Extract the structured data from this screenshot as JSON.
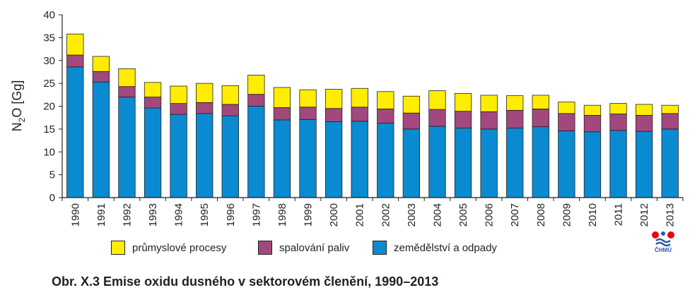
{
  "chart_data": {
    "type": "bar",
    "stacked": true,
    "ylabel_main": "N",
    "ylabel_sub": "2",
    "ylabel_rest": "O [Gg]",
    "ylim": [
      0,
      40
    ],
    "yticks": [
      0,
      5,
      10,
      15,
      20,
      25,
      30,
      35,
      40
    ],
    "grid": false,
    "legend_position": "bottom",
    "categories": [
      "1990",
      "1991",
      "1992",
      "1993",
      "1994",
      "1995",
      "1996",
      "1997",
      "1998",
      "1999",
      "2000",
      "2001",
      "2002",
      "2003",
      "2004",
      "2005",
      "2006",
      "2007",
      "2008",
      "2009",
      "2010",
      "2011",
      "2012",
      "2013"
    ],
    "series": [
      {
        "name": "zemědělství a odpady",
        "color": "#0a8bd1",
        "values": [
          28.6,
          25.3,
          22.0,
          19.6,
          18.2,
          18.4,
          17.9,
          20.0,
          17.0,
          17.1,
          16.6,
          16.7,
          16.3,
          15.0,
          15.6,
          15.2,
          15.0,
          15.2,
          15.5,
          14.6,
          14.4,
          14.7,
          14.5,
          15.0
        ]
      },
      {
        "name": "spalování paliv",
        "color": "#a3487d",
        "values": [
          2.6,
          2.3,
          2.3,
          2.4,
          2.4,
          2.4,
          2.5,
          2.6,
          2.7,
          2.7,
          2.9,
          3.1,
          3.1,
          3.5,
          3.7,
          3.7,
          3.8,
          3.9,
          3.9,
          3.8,
          3.6,
          3.6,
          3.5,
          3.4
        ]
      },
      {
        "name": "průmyslové procesy",
        "color": "#ffed00",
        "values": [
          4.6,
          3.3,
          3.9,
          3.2,
          3.8,
          4.2,
          4.1,
          4.2,
          4.4,
          3.8,
          4.2,
          4.1,
          3.8,
          3.7,
          4.1,
          3.9,
          3.6,
          3.2,
          3.0,
          2.5,
          2.2,
          2.3,
          2.4,
          1.8
        ]
      }
    ]
  },
  "legend": [
    {
      "label": "průmyslové procesy",
      "color": "#ffed00"
    },
    {
      "label": "spalování paliv",
      "color": "#a3487d"
    },
    {
      "label": "zemědělství a odpady",
      "color": "#0a8bd1"
    }
  ],
  "caption": "Obr. X.3  Emise oxidu dusného v sektorovém členění, 1990–2013",
  "logo": {
    "icon": "chmu-logo-icon",
    "text": "ČHMÚ",
    "red": "#e30613",
    "blue": "#2a5aa8"
  }
}
